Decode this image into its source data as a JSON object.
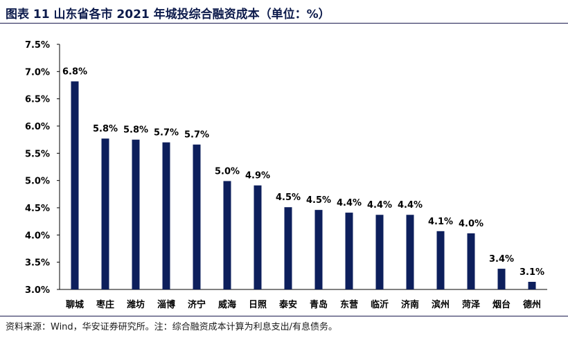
{
  "header": {
    "title": "图表 11 山东省各市 2021 年城投综合融资成本（单位：%）"
  },
  "footer": {
    "source": "资料来源：Wind，华安证券研究所。注：综合融资成本计算为利息支出/有息债务。"
  },
  "colors": {
    "bar": "#0d1f5c",
    "axis": "#000000"
  },
  "chart_data": {
    "type": "bar",
    "title": "",
    "xlabel": "",
    "ylabel": "",
    "ylim": [
      3.0,
      7.5
    ],
    "yticks": [
      "3.0%",
      "3.5%",
      "4.0%",
      "4.5%",
      "5.0%",
      "5.5%",
      "6.0%",
      "6.5%",
      "7.0%",
      "7.5%"
    ],
    "categories": [
      "聊城",
      "枣庄",
      "潍坊",
      "淄博",
      "济宁",
      "威海",
      "日照",
      "泰安",
      "青岛",
      "东营",
      "临沂",
      "济南",
      "滨州",
      "菏泽",
      "烟台",
      "德州"
    ],
    "values": [
      6.82,
      5.77,
      5.75,
      5.7,
      5.66,
      4.99,
      4.91,
      4.51,
      4.46,
      4.41,
      4.37,
      4.37,
      4.07,
      4.03,
      3.38,
      3.14
    ],
    "labels": [
      "6.8%",
      "5.8%",
      "5.8%",
      "5.7%",
      "5.7%",
      "5.0%",
      "4.9%",
      "4.5%",
      "4.5%",
      "4.4%",
      "4.4%",
      "4.4%",
      "4.1%",
      "4.0%",
      "3.4%",
      "3.1%"
    ],
    "grid": false,
    "legend": "none"
  }
}
